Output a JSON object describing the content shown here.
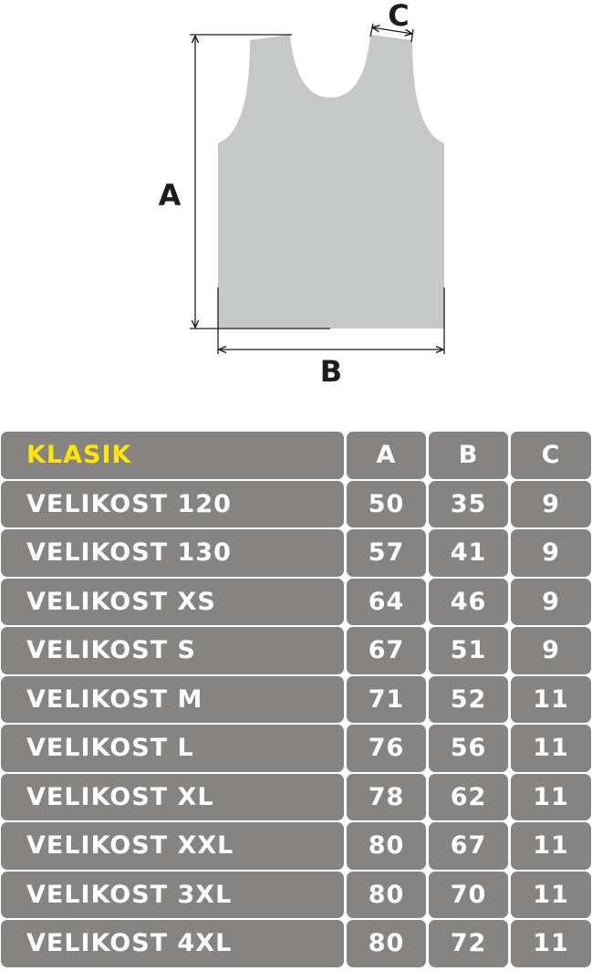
{
  "diagram": {
    "labels": {
      "a": "A",
      "b": "B",
      "c": "C"
    },
    "garment_color": "#c6c7c7",
    "line_color": "#1d1d1b"
  },
  "table": {
    "title": "KLASIK",
    "title_color": "#ffe500",
    "cell_color": "#858483",
    "columns": [
      "A",
      "B",
      "C"
    ],
    "rows": [
      {
        "label": "VELIKOST 120",
        "values": [
          "50",
          "35",
          "9"
        ]
      },
      {
        "label": "VELIKOST 130",
        "values": [
          "57",
          "41",
          "9"
        ]
      },
      {
        "label": "VELIKOST XS",
        "values": [
          "64",
          "46",
          "9"
        ]
      },
      {
        "label": "VELIKOST S",
        "values": [
          "67",
          "51",
          "9"
        ]
      },
      {
        "label": "VELIKOST M",
        "values": [
          "71",
          "52",
          "11"
        ]
      },
      {
        "label": "VELIKOST L",
        "values": [
          "76",
          "56",
          "11"
        ]
      },
      {
        "label": "VELIKOST XL",
        "values": [
          "78",
          "62",
          "11"
        ]
      },
      {
        "label": "VELIKOST XXL",
        "values": [
          "80",
          "67",
          "11"
        ]
      },
      {
        "label": "VELIKOST 3XL",
        "values": [
          "80",
          "70",
          "11"
        ]
      },
      {
        "label": "VELIKOST 4XL",
        "values": [
          "80",
          "72",
          "11"
        ]
      }
    ]
  }
}
